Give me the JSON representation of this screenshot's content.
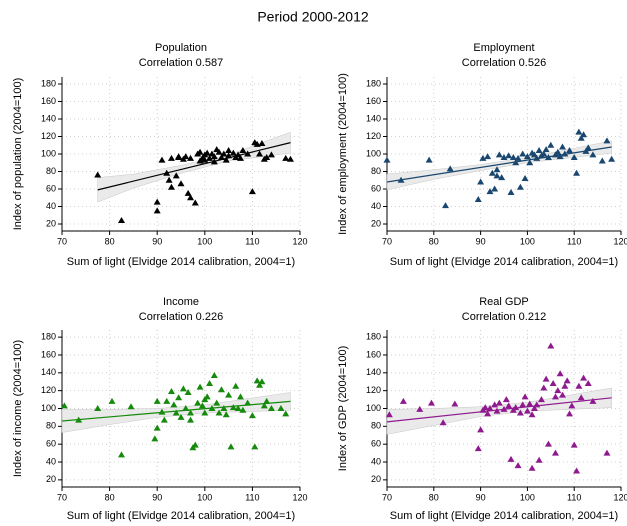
{
  "title": "Period 2000-2012",
  "chart_data": [
    {
      "type": "scatter",
      "title": "Population",
      "subtitle": "Correlation 0.587",
      "xlabel": "Sum of light (Elvidge 2014 calibration, 2004=1)",
      "ylabel": "Index of population (2004=100)",
      "color": "#000000",
      "xlim": [
        70,
        120
      ],
      "ylim": [
        12,
        188
      ],
      "xticks": [
        70,
        80,
        90,
        100,
        110,
        120
      ],
      "yticks": [
        20,
        40,
        60,
        80,
        100,
        120,
        140,
        160,
        180
      ],
      "x": [
        77.5,
        82.5,
        90,
        90,
        91,
        92,
        92.5,
        93,
        93,
        94,
        94.5,
        95,
        95.5,
        96,
        96.5,
        97,
        97,
        98,
        98.5,
        99,
        99.5,
        100,
        100,
        100.5,
        101,
        101.5,
        102,
        102,
        103,
        103.5,
        104,
        104.5,
        105,
        105,
        106,
        106.5,
        107,
        107.5,
        108,
        109,
        110,
        110.5,
        111,
        111.5,
        112,
        112.5,
        113,
        114,
        117,
        118,
        94.5,
        102.5,
        99
      ],
      "y": [
        76,
        24,
        35,
        45,
        93,
        78,
        70,
        62,
        95,
        75,
        96,
        66,
        94,
        97,
        55,
        95,
        50,
        44,
        100,
        92,
        95,
        99,
        93,
        101,
        95,
        100,
        97,
        91,
        102,
        96,
        100,
        93,
        98,
        104,
        101,
        96,
        99,
        95,
        104,
        100,
        57,
        113,
        111,
        100,
        112,
        94,
        96,
        99,
        95,
        94,
        97,
        105,
        102
      ],
      "fit": {
        "x": [
          77.5,
          118
        ],
        "y": [
          59,
          113
        ]
      },
      "ci": {
        "x": [
          77.5,
          85,
          95,
          105,
          118
        ],
        "lower": [
          45,
          61,
          78,
          92,
          101
        ],
        "upper": [
          73,
          77,
          87,
          99,
          125
        ]
      }
    },
    {
      "type": "scatter",
      "title": "Employment",
      "subtitle": "Correlation 0.526",
      "xlabel": "Sum of light (Elvidge 2014 calibration, 2004=1)",
      "ylabel": "Index of employment (2004=100)",
      "color": "#1a476f",
      "xlim": [
        70,
        120
      ],
      "ylim": [
        12,
        188
      ],
      "xticks": [
        70,
        80,
        90,
        100,
        110,
        120
      ],
      "yticks": [
        20,
        40,
        60,
        80,
        100,
        120,
        140,
        160,
        180
      ],
      "x": [
        70,
        73,
        79,
        82.5,
        83.5,
        89.5,
        90,
        90.5,
        91.5,
        92,
        92.5,
        93,
        93.5,
        94,
        94.5,
        95,
        96,
        96.5,
        97,
        97.5,
        98,
        98.5,
        99,
        99.5,
        100,
        100.5,
        101,
        101.5,
        102,
        102.5,
        103,
        103.5,
        104,
        104.5,
        105,
        106,
        106.5,
        107,
        107.5,
        108,
        109,
        110,
        110.5,
        111,
        111.5,
        112,
        112.5,
        113,
        114,
        116,
        117,
        118,
        93.5
      ],
      "y": [
        93,
        70,
        93,
        41,
        83,
        48,
        68,
        95,
        97,
        57,
        78,
        60,
        82,
        99,
        73,
        96,
        98,
        56,
        96,
        90,
        95,
        62,
        100,
        72,
        97,
        90,
        101,
        99,
        95,
        104,
        98,
        100,
        105,
        96,
        110,
        99,
        102,
        97,
        108,
        100,
        104,
        96,
        78,
        125,
        118,
        122,
        103,
        107,
        99,
        92,
        115,
        94,
        75
      ],
      "fit": {
        "x": [
          70,
          118
        ],
        "y": [
          68,
          108
        ]
      },
      "ci": {
        "x": [
          70,
          80,
          90,
          100,
          118
        ],
        "lower": [
          59,
          71,
          81,
          90,
          101
        ],
        "upper": [
          77,
          82,
          88,
          96,
          115
        ]
      }
    },
    {
      "type": "scatter",
      "title": "Income",
      "subtitle": "Correlation 0.226",
      "xlabel": "Sum of light (Elvidge 2014 calibration, 2004=1)",
      "ylabel": "Index of income (2004=100)",
      "color": "#168a0c",
      "xlim": [
        70,
        120
      ],
      "ylim": [
        12,
        188
      ],
      "xticks": [
        70,
        80,
        90,
        100,
        110,
        120
      ],
      "yticks": [
        20,
        40,
        60,
        80,
        100,
        120,
        140,
        160,
        180
      ],
      "x": [
        70.5,
        73.5,
        77.5,
        80.5,
        82.5,
        84.5,
        89.5,
        90,
        90,
        91,
        91.5,
        92,
        93,
        93.5,
        94,
        94.5,
        95,
        95.5,
        96,
        96.5,
        97,
        97.5,
        98,
        98.5,
        99,
        99.5,
        100,
        100.5,
        101,
        101.5,
        102,
        102.5,
        103,
        103.5,
        104,
        104.5,
        105,
        105.5,
        106,
        106.5,
        107,
        107.5,
        108,
        109,
        110,
        110.5,
        111,
        111.5,
        112,
        112.5,
        113,
        114,
        116,
        117,
        97,
        100
      ],
      "y": [
        103,
        87,
        100,
        108,
        48,
        102,
        66,
        78,
        108,
        96,
        87,
        108,
        119,
        104,
        95,
        112,
        90,
        122,
        100,
        118,
        87,
        56,
        59,
        106,
        124,
        103,
        95,
        113,
        128,
        100,
        137,
        106,
        95,
        121,
        100,
        93,
        115,
        57,
        101,
        125,
        100,
        113,
        98,
        106,
        92,
        57,
        131,
        126,
        130,
        103,
        108,
        100,
        100,
        94,
        95,
        110
      ],
      "fit": {
        "x": [
          70,
          118
        ],
        "y": [
          86,
          108
        ]
      },
      "ci": {
        "x": [
          70,
          80,
          90,
          100,
          118
        ],
        "lower": [
          73,
          82,
          90,
          95,
          98
        ],
        "upper": [
          99,
          99,
          100,
          104,
          118
        ]
      }
    },
    {
      "type": "scatter",
      "title": "Real GDP",
      "subtitle": "Correlation 0.212",
      "xlabel": "Sum of light (Elvidge 2014 calibration, 2004=1)",
      "ylabel": "Index of GDP (2004=100)",
      "color": "#8e1a8e",
      "xlim": [
        70,
        120
      ],
      "ylim": [
        12,
        188
      ],
      "xticks": [
        70,
        80,
        90,
        100,
        110,
        120
      ],
      "yticks": [
        20,
        40,
        60,
        80,
        100,
        120,
        140,
        160,
        180
      ],
      "x": [
        70.5,
        73.5,
        77,
        79.5,
        82,
        84.5,
        89.5,
        90,
        90.5,
        91,
        91.5,
        92,
        93,
        93.5,
        94,
        95,
        95.5,
        96,
        96.5,
        97,
        97.5,
        98,
        98.5,
        99,
        99.5,
        100,
        100.5,
        101,
        101.5,
        102,
        102.5,
        103,
        103.5,
        104,
        104.5,
        105,
        105.5,
        106,
        106.5,
        107,
        107.5,
        108,
        108.5,
        109,
        109.5,
        110,
        110.5,
        111,
        111.5,
        112,
        113,
        114,
        117,
        101,
        106
      ],
      "y": [
        93,
        108,
        99,
        106,
        84,
        105,
        55,
        76,
        98,
        101,
        94,
        100,
        104,
        97,
        106,
        99,
        110,
        103,
        43,
        98,
        101,
        36,
        95,
        104,
        113,
        97,
        105,
        93,
        100,
        104,
        42,
        110,
        123,
        133,
        60,
        170,
        128,
        113,
        120,
        139,
        115,
        125,
        131,
        94,
        103,
        59,
        30,
        125,
        112,
        134,
        128,
        108,
        50,
        33,
        50
      ],
      "fit": {
        "x": [
          70,
          118
        ],
        "y": [
          85,
          112
        ]
      },
      "ci": {
        "x": [
          70,
          80,
          90,
          100,
          118
        ],
        "lower": [
          71,
          81,
          91,
          97,
          101
        ],
        "upper": [
          99,
          100,
          102,
          107,
          123
        ]
      }
    }
  ]
}
